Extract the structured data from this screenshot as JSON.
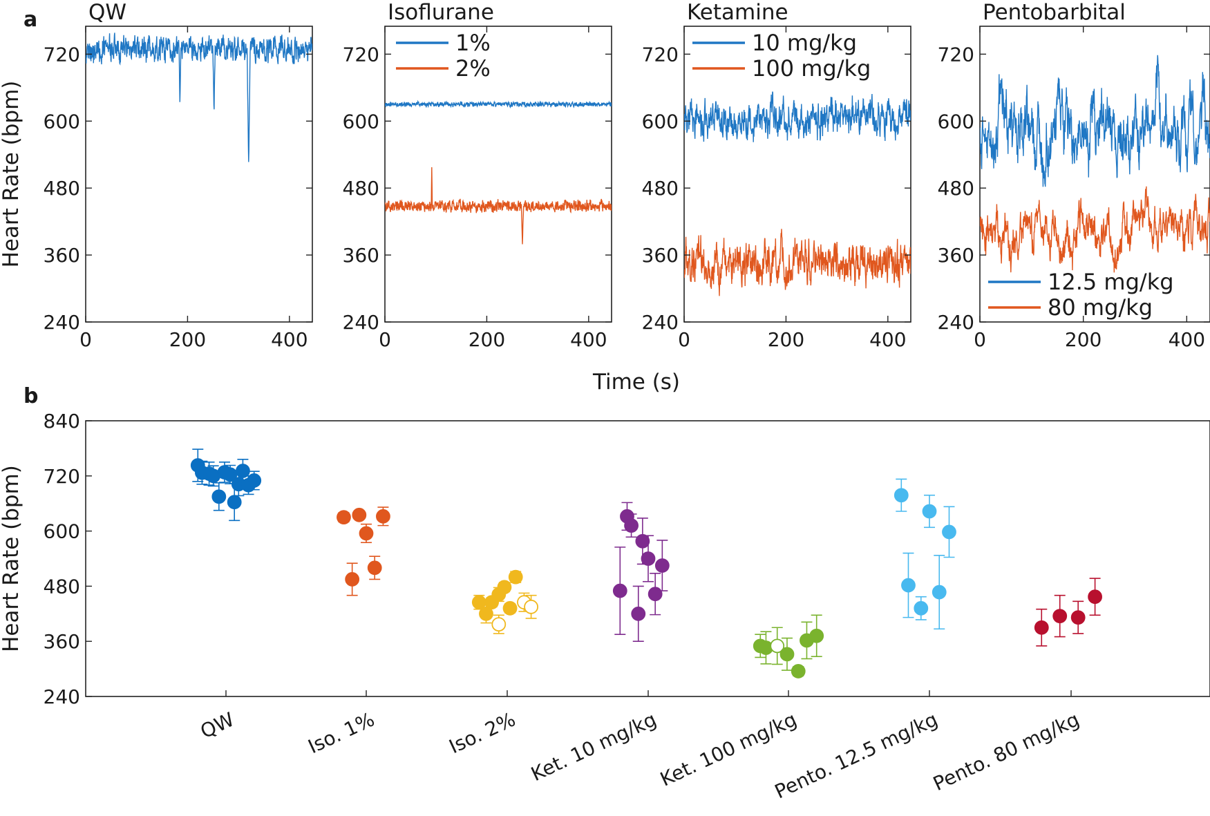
{
  "panel_labels": {
    "a": "a",
    "b": "b"
  },
  "colors": {
    "blue": "#1f77c4",
    "orange": "#e0571e"
  },
  "chart_data": [
    {
      "type": "line",
      "panel": "a",
      "title": "QW",
      "xlabel": "Time (s)",
      "ylabel": "Heart Rate (bpm)",
      "xlim": [
        0,
        445
      ],
      "ylim": [
        240,
        770
      ],
      "xticks": [
        0,
        200,
        400
      ],
      "yticks": [
        240,
        360,
        480,
        600,
        720
      ],
      "series": [
        {
          "name": "QW",
          "color": "#1f77c4",
          "mean": 730,
          "amp": 22,
          "noise": 0.5,
          "dips": [
            {
              "t": 320,
              "v": 520,
              "w": 3
            },
            {
              "t": 252,
              "v": 610,
              "w": 2
            },
            {
              "t": 185,
              "v": 630,
              "w": 2
            }
          ]
        }
      ]
    },
    {
      "type": "line",
      "panel": "a",
      "title": "Isoflurane",
      "xlabel": "Time (s)",
      "xlim": [
        0,
        445
      ],
      "ylim": [
        240,
        770
      ],
      "xticks": [
        0,
        200,
        400
      ],
      "yticks": [
        240,
        360,
        480,
        600,
        720
      ],
      "legend": {
        "entries": [
          "1%",
          "2%"
        ],
        "position": "top-left"
      },
      "series": [
        {
          "name": "1%",
          "color": "#1f77c4",
          "mean": 630,
          "amp": 4,
          "noise": 0.3,
          "dips": []
        },
        {
          "name": "2%",
          "color": "#e0571e",
          "mean": 448,
          "amp": 10,
          "noise": 0.35,
          "dips": [
            {
              "t": 270,
              "v": 378,
              "w": 2
            },
            {
              "t": 92,
              "v": 520,
              "w": 1
            }
          ]
        }
      ]
    },
    {
      "type": "line",
      "panel": "a",
      "title": "Ketamine",
      "xlabel": "Time (s)",
      "xlim": [
        0,
        445
      ],
      "ylim": [
        240,
        770
      ],
      "xticks": [
        0,
        200,
        400
      ],
      "yticks": [
        240,
        360,
        480,
        600,
        720
      ],
      "legend": {
        "entries": [
          "10 mg/kg",
          "100 mg/kg"
        ],
        "position": "top-right"
      },
      "series": [
        {
          "name": "10 mg/kg",
          "color": "#1f77c4",
          "mean": 605,
          "amp": 30,
          "noise": 0.7,
          "dips": []
        },
        {
          "name": "100 mg/kg",
          "color": "#e0571e",
          "mean": 345,
          "amp": 35,
          "noise": 0.7,
          "dips": []
        }
      ]
    },
    {
      "type": "line",
      "panel": "a",
      "title": "Pentobarbital",
      "xlabel": "Time (s)",
      "xlim": [
        0,
        445
      ],
      "ylim": [
        240,
        770
      ],
      "xticks": [
        0,
        200,
        400
      ],
      "yticks": [
        240,
        360,
        480,
        600,
        720
      ],
      "legend": {
        "entries": [
          "12.5 mg/kg",
          "80 mg/kg"
        ],
        "position": "bottom-left"
      },
      "series": [
        {
          "name": "12.5 mg/kg",
          "color": "#1f77c4",
          "mean": 590,
          "amp": 55,
          "noise": 0.9,
          "dips": []
        },
        {
          "name": "80 mg/kg",
          "color": "#e0571e",
          "mean": 405,
          "amp": 35,
          "noise": 0.9,
          "dips": []
        }
      ]
    },
    {
      "type": "scatter",
      "panel": "b",
      "ylabel": "Heart Rate (bpm)",
      "ylim": [
        240,
        840
      ],
      "yticks": [
        240,
        360,
        480,
        600,
        720,
        840
      ],
      "categories": [
        "QW",
        "Iso. 1%",
        "Iso. 2%",
        "Ket. 10 mg/kg",
        "Ket. 100 mg/kg",
        "Pento. 12.5 mg/kg",
        "Pento. 80 mg/kg"
      ],
      "groups": [
        {
          "name": "QW",
          "color": "#0a6fc2",
          "points": [
            {
              "o": -0.2,
              "y": 743,
              "e": 35,
              "f": true
            },
            {
              "o": -0.17,
              "y": 727,
              "e": 25,
              "f": true
            },
            {
              "o": -0.12,
              "y": 725,
              "e": 25,
              "f": true
            },
            {
              "o": -0.09,
              "y": 720,
              "e": 22,
              "f": true
            },
            {
              "o": -0.05,
              "y": 675,
              "e": 30,
              "f": true
            },
            {
              "o": -0.01,
              "y": 728,
              "e": 22,
              "f": true
            },
            {
              "o": 0.03,
              "y": 723,
              "e": 20,
              "f": true
            },
            {
              "o": 0.06,
              "y": 663,
              "e": 40,
              "f": true
            },
            {
              "o": 0.09,
              "y": 702,
              "e": 25,
              "f": true
            },
            {
              "o": 0.12,
              "y": 731,
              "e": 25,
              "f": true
            },
            {
              "o": 0.16,
              "y": 700,
              "e": 20,
              "f": true
            },
            {
              "o": 0.2,
              "y": 710,
              "e": 20,
              "f": true
            }
          ]
        },
        {
          "name": "Iso. 1%",
          "color": "#e0571e",
          "points": [
            {
              "o": -0.16,
              "y": 630,
              "e": 10,
              "f": true
            },
            {
              "o": -0.1,
              "y": 495,
              "e": 35,
              "f": true
            },
            {
              "o": 0.0,
              "y": 595,
              "e": 20,
              "f": true
            },
            {
              "o": 0.06,
              "y": 520,
              "e": 25,
              "f": true
            },
            {
              "o": -0.05,
              "y": 635,
              "e": 8,
              "f": true
            },
            {
              "o": 0.12,
              "y": 632,
              "e": 20,
              "f": true
            }
          ]
        },
        {
          "name": "Iso. 2%",
          "color": "#f0b81e",
          "points": [
            {
              "o": -0.2,
              "y": 445,
              "e": 15,
              "f": true
            },
            {
              "o": -0.15,
              "y": 420,
              "e": 20,
              "f": true
            },
            {
              "o": -0.11,
              "y": 445,
              "e": 10,
              "f": true
            },
            {
              "o": -0.06,
              "y": 462,
              "e": 15,
              "f": true
            },
            {
              "o": -0.02,
              "y": 478,
              "e": 10,
              "f": true
            },
            {
              "o": 0.02,
              "y": 432,
              "e": 10,
              "f": true
            },
            {
              "o": 0.06,
              "y": 500,
              "e": 12,
              "f": true
            },
            {
              "o": 0.12,
              "y": 445,
              "e": 20,
              "f": false
            },
            {
              "o": 0.17,
              "y": 435,
              "e": 25,
              "f": false
            },
            {
              "o": -0.06,
              "y": 397,
              "e": 20,
              "f": false
            }
          ]
        },
        {
          "name": "Ket. 10 mg/kg",
          "color": "#7e2b8e",
          "points": [
            {
              "o": -0.2,
              "y": 470,
              "e": 95,
              "f": true
            },
            {
              "o": -0.15,
              "y": 632,
              "e": 30,
              "f": true
            },
            {
              "o": -0.12,
              "y": 612,
              "e": 25,
              "f": true
            },
            {
              "o": -0.07,
              "y": 420,
              "e": 60,
              "f": true
            },
            {
              "o": -0.04,
              "y": 578,
              "e": 50,
              "f": true
            },
            {
              "o": 0.0,
              "y": 540,
              "e": 50,
              "f": true
            },
            {
              "o": 0.05,
              "y": 463,
              "e": 45,
              "f": true
            },
            {
              "o": 0.1,
              "y": 525,
              "e": 55,
              "f": true
            }
          ]
        },
        {
          "name": "Ket. 100 mg/kg",
          "color": "#7ab32e",
          "points": [
            {
              "o": -0.2,
              "y": 350,
              "e": 25,
              "f": true
            },
            {
              "o": -0.16,
              "y": 346,
              "e": 35,
              "f": true
            },
            {
              "o": -0.08,
              "y": 350,
              "e": 40,
              "f": false
            },
            {
              "o": -0.01,
              "y": 332,
              "e": 35,
              "f": true
            },
            {
              "o": 0.07,
              "y": 295,
              "e": 10,
              "f": true
            },
            {
              "o": 0.13,
              "y": 362,
              "e": 40,
              "f": true
            },
            {
              "o": 0.2,
              "y": 372,
              "e": 45,
              "f": true
            }
          ]
        },
        {
          "name": "Pento. 12.5 mg/kg",
          "color": "#48b9ef",
          "points": [
            {
              "o": -0.2,
              "y": 678,
              "e": 35,
              "f": true
            },
            {
              "o": -0.15,
              "y": 482,
              "e": 70,
              "f": true
            },
            {
              "o": -0.06,
              "y": 432,
              "e": 25,
              "f": true
            },
            {
              "o": 0.0,
              "y": 643,
              "e": 35,
              "f": true
            },
            {
              "o": 0.07,
              "y": 467,
              "e": 80,
              "f": true
            },
            {
              "o": 0.14,
              "y": 598,
              "e": 55,
              "f": true
            }
          ]
        },
        {
          "name": "Pento. 80 mg/kg",
          "color": "#b8102e",
          "points": [
            {
              "o": -0.21,
              "y": 390,
              "e": 40,
              "f": true
            },
            {
              "o": -0.08,
              "y": 415,
              "e": 45,
              "f": true
            },
            {
              "o": 0.05,
              "y": 412,
              "e": 35,
              "f": true
            },
            {
              "o": 0.17,
              "y": 457,
              "e": 40,
              "f": true
            }
          ]
        }
      ]
    }
  ]
}
